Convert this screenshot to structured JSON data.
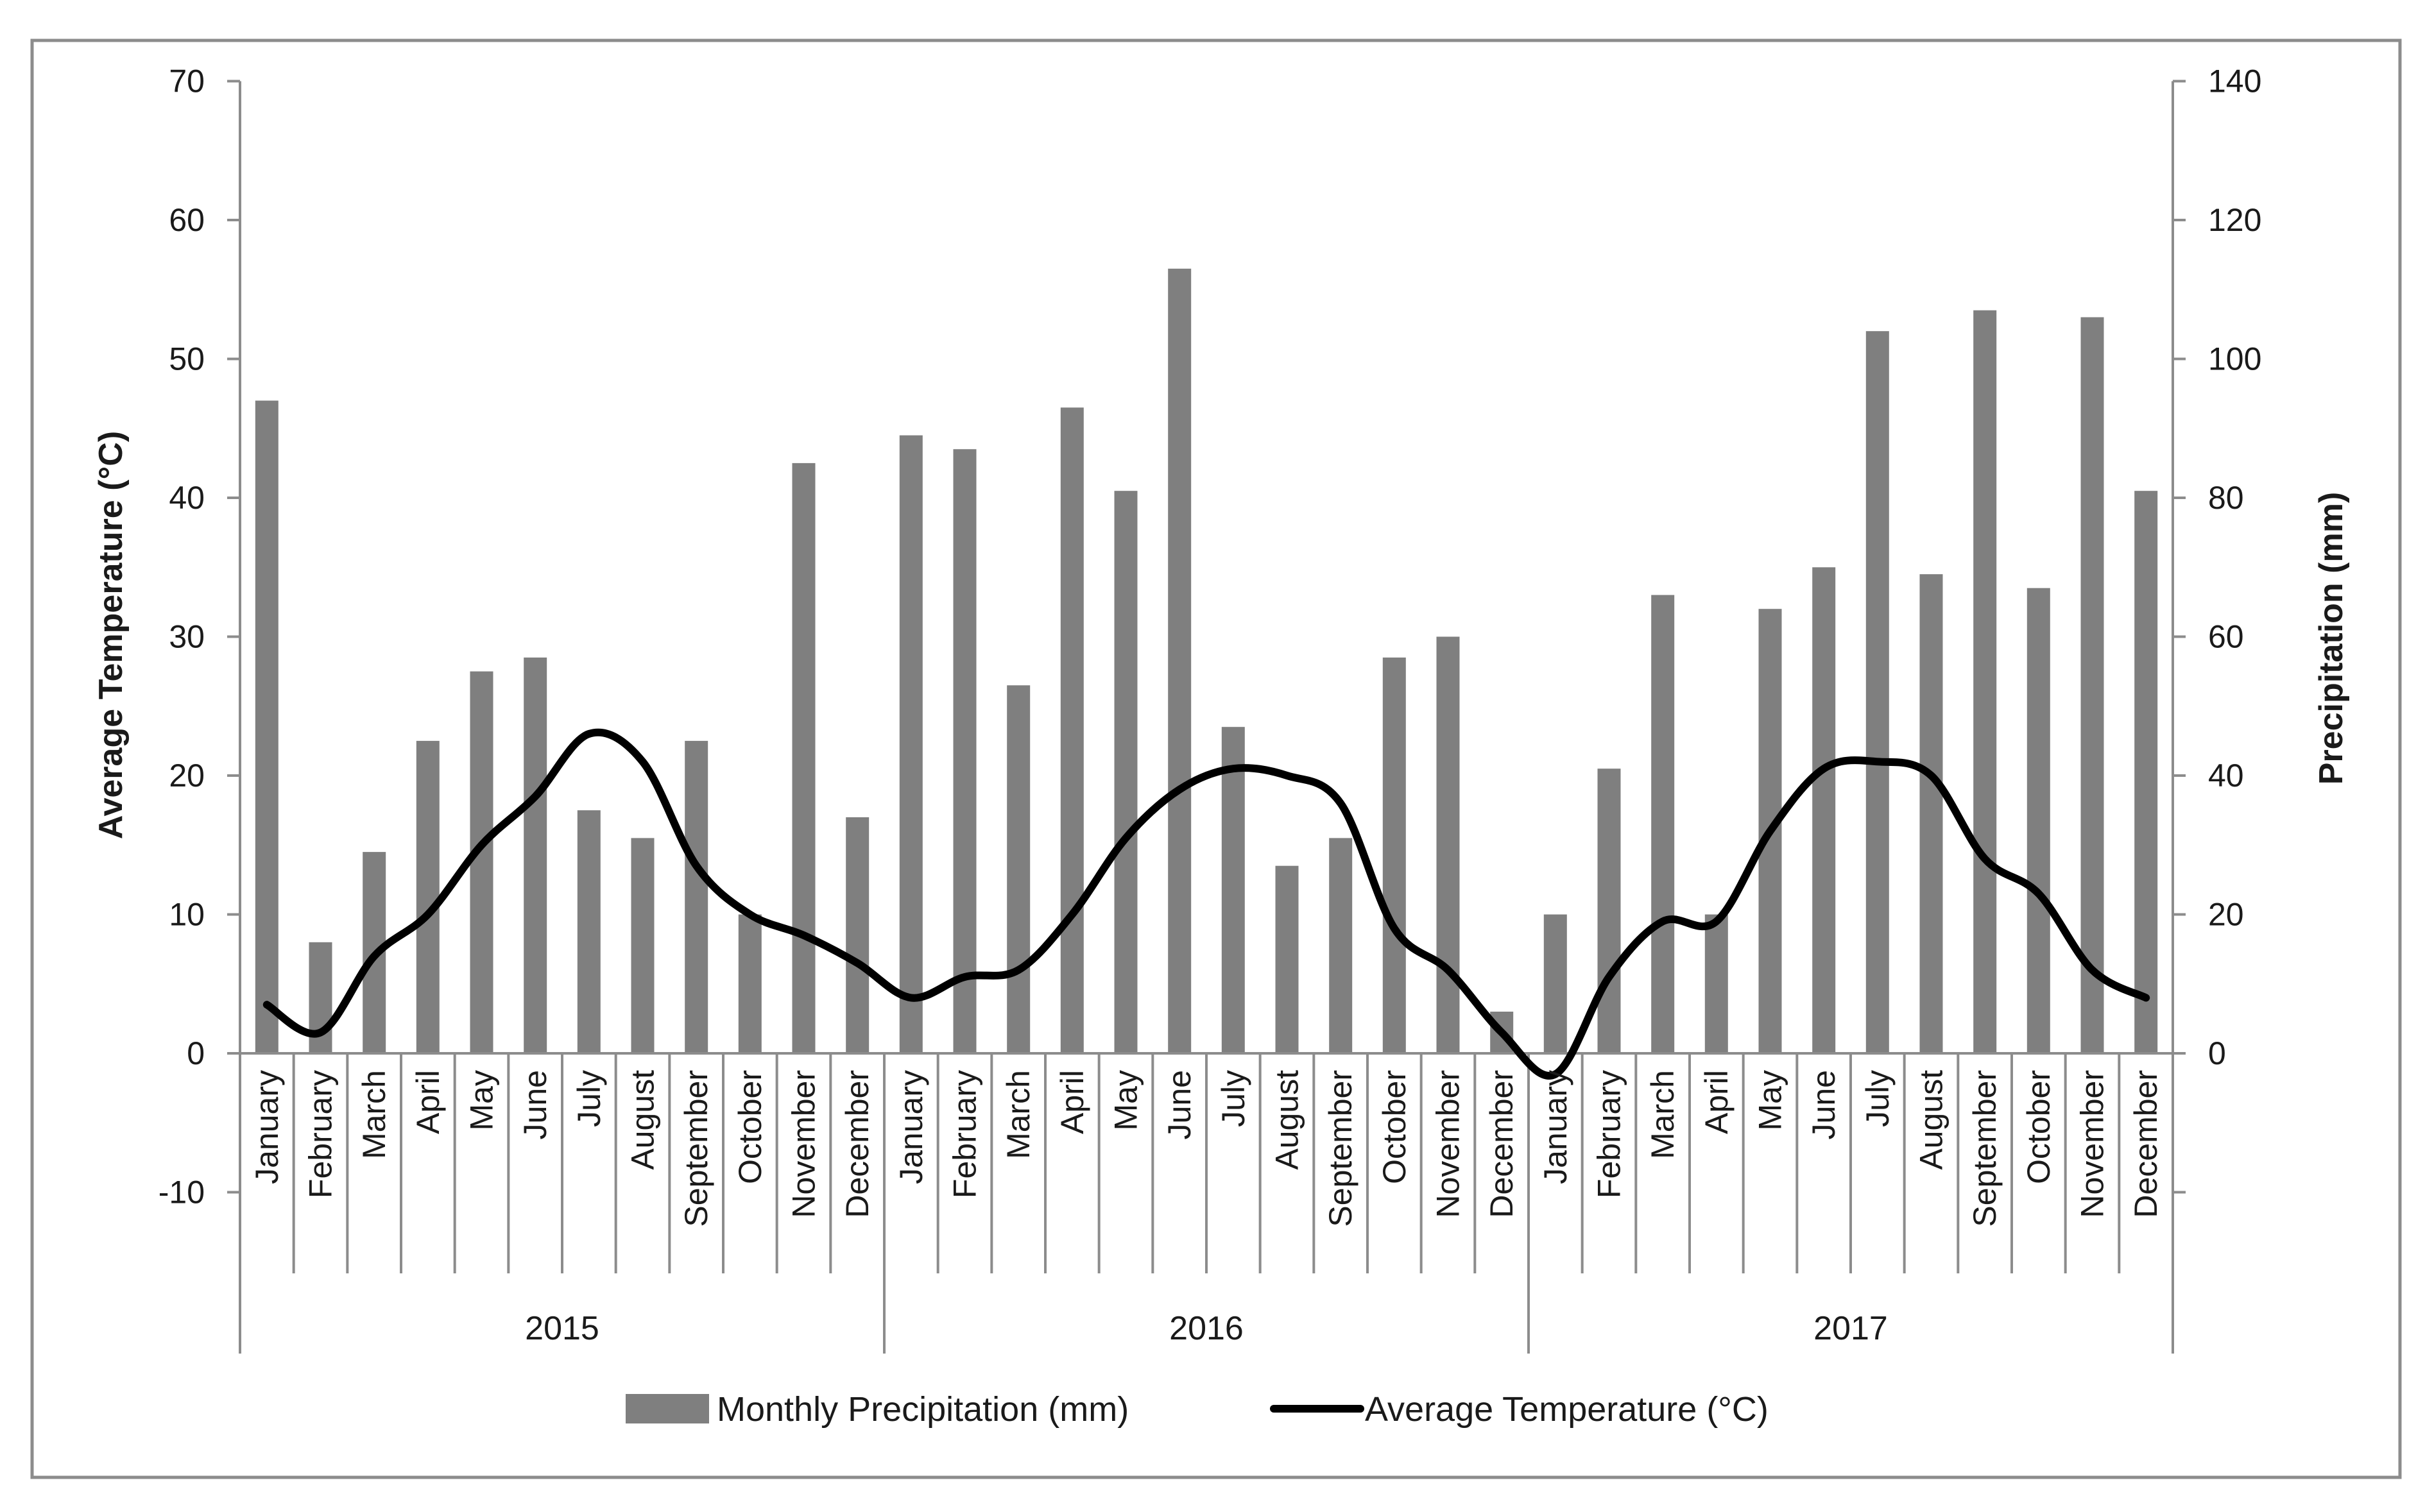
{
  "chart_data": {
    "type": "bar+line",
    "title": "",
    "years": [
      "2015",
      "2016",
      "2017"
    ],
    "months": [
      "January",
      "February",
      "March",
      "April",
      "May",
      "June",
      "July",
      "August",
      "September",
      "October",
      "November",
      "December"
    ],
    "categories": [
      "January",
      "February",
      "March",
      "April",
      "May",
      "June",
      "July",
      "August",
      "September",
      "October",
      "November",
      "December",
      "January",
      "February",
      "March",
      "April",
      "May",
      "June",
      "July",
      "August",
      "September",
      "October",
      "November",
      "December",
      "January",
      "February",
      "March",
      "April",
      "May",
      "June",
      "July",
      "August",
      "September",
      "October",
      "November",
      "December"
    ],
    "series": [
      {
        "name": "Monthly Precipitation (mm)",
        "type": "bar",
        "axis": "right",
        "color": "#7f7f7f",
        "values": [
          94,
          16,
          29,
          45,
          55,
          57,
          35,
          31,
          45,
          20,
          85,
          34,
          89,
          87,
          53,
          93,
          81,
          113,
          47,
          27,
          31,
          57,
          60,
          6,
          20,
          41,
          66,
          20,
          64,
          70,
          104,
          69,
          107,
          67,
          106,
          81
        ]
      },
      {
        "name": "Average Temperature (°C)",
        "type": "line",
        "axis": "left",
        "color": "#000000",
        "values": [
          3.5,
          1.5,
          7,
          10,
          15,
          18.5,
          23,
          21,
          13.5,
          10,
          8.5,
          6.5,
          4,
          5.5,
          6,
          10,
          15.5,
          19,
          20.5,
          20,
          18,
          9,
          6,
          1.5,
          -1.5,
          5.5,
          9.5,
          9.5,
          16,
          20.5,
          21,
          20,
          14,
          11.5,
          6,
          4
        ]
      }
    ],
    "y_left": {
      "label": "Average Temperature (°C)",
      "min": -10,
      "max": 70,
      "ticks": [
        -10,
        0,
        10,
        20,
        30,
        40,
        50,
        60,
        70
      ]
    },
    "y_right": {
      "label": "Precipitation (mm)",
      "min": 0,
      "max": 140,
      "ticks": [
        0,
        20,
        40,
        60,
        80,
        100,
        120,
        140
      ]
    },
    "legend": {
      "position": "bottom",
      "items": [
        {
          "label": "Monthly Precipitation (mm)",
          "symbol": "bar",
          "color": "#7f7f7f"
        },
        {
          "label": "Average Temperature (°C)",
          "symbol": "line",
          "color": "#000000"
        }
      ]
    },
    "grid": false
  }
}
